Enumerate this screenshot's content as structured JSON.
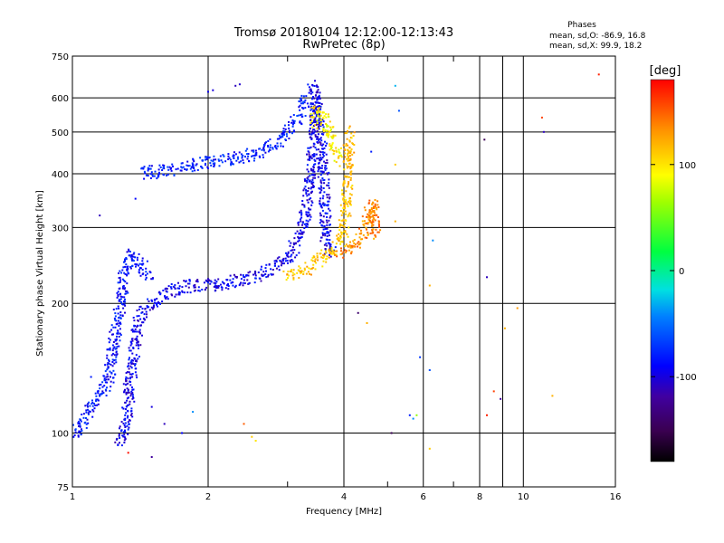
{
  "chart_data": {
    "type": "scatter",
    "title": "Tromsø 20180104 12:12:00-12:13:43",
    "subtitle": "RwPretec (8p)",
    "xlabel": "Frequency [MHz]",
    "ylabel": "Stationary phase Virtual Height [km]",
    "x_scale": "log",
    "y_scale": "log",
    "xlim": [
      1,
      16
    ],
    "ylim": [
      75,
      750
    ],
    "x_ticks": [
      1,
      2,
      4,
      6,
      8,
      10,
      16
    ],
    "x_tick_labels": [
      "1",
      "2",
      "4",
      "6",
      "8",
      "10",
      "16"
    ],
    "y_ticks": [
      75,
      100,
      200,
      300,
      400,
      500,
      600,
      750
    ],
    "y_tick_labels": [
      "75",
      "100",
      "200",
      "300",
      "400",
      "500",
      "600",
      "750"
    ],
    "grid": true,
    "stats": {
      "header": "Phases",
      "o_line": "mean, sd,O: -86.9, 16.8",
      "x_line": "mean, sd,X:  99.9, 18.2"
    },
    "colorbar": {
      "label": "[deg]",
      "range": [
        -180,
        180
      ],
      "ticks": [
        100,
        0,
        -100
      ],
      "tick_labels": [
        "100",
        "0",
        "-100"
      ]
    },
    "traces": [
      {
        "phase": -95,
        "points": [
          [
            1.26,
            95
          ],
          [
            1.3,
            100
          ],
          [
            1.32,
            110
          ],
          [
            1.34,
            125
          ],
          [
            1.36,
            145
          ],
          [
            1.38,
            165
          ],
          [
            1.4,
            180
          ],
          [
            1.44,
            192
          ],
          [
            1.5,
            200
          ],
          [
            1.56,
            205
          ],
          [
            1.62,
            210
          ],
          [
            1.68,
            215
          ],
          [
            1.76,
            218
          ],
          [
            1.85,
            220
          ],
          [
            1.95,
            220
          ],
          [
            2.05,
            221
          ],
          [
            2.2,
            223
          ],
          [
            2.35,
            226
          ],
          [
            2.5,
            230
          ],
          [
            2.65,
            235
          ],
          [
            2.8,
            242
          ],
          [
            2.95,
            252
          ],
          [
            3.05,
            262
          ],
          [
            3.15,
            278
          ],
          [
            3.25,
            300
          ],
          [
            3.3,
            330
          ],
          [
            3.35,
            380
          ],
          [
            3.4,
            450
          ],
          [
            3.45,
            550
          ],
          [
            3.48,
            620
          ]
        ]
      },
      {
        "phase": -85,
        "points": [
          [
            1.0,
            98
          ],
          [
            1.05,
            105
          ],
          [
            1.1,
            115
          ],
          [
            1.15,
            122
          ],
          [
            1.2,
            130
          ],
          [
            1.22,
            150
          ],
          [
            1.25,
            175
          ],
          [
            1.28,
            200
          ],
          [
            1.3,
            230
          ],
          [
            1.33,
            250
          ],
          [
            1.35,
            260
          ],
          [
            1.38,
            255
          ],
          [
            1.42,
            245
          ],
          [
            1.5,
            232
          ]
        ]
      },
      {
        "phase": -80,
        "points": [
          [
            1.42,
            400
          ],
          [
            1.55,
            405
          ],
          [
            1.7,
            410
          ],
          [
            1.85,
            418
          ],
          [
            2.0,
            425
          ],
          [
            2.2,
            432
          ],
          [
            2.45,
            440
          ],
          [
            2.7,
            455
          ],
          [
            2.9,
            480
          ],
          [
            3.05,
            510
          ],
          [
            3.2,
            550
          ],
          [
            3.3,
            600
          ]
        ]
      },
      {
        "phase": -95,
        "points": [
          [
            3.4,
            640
          ],
          [
            3.45,
            600
          ],
          [
            3.5,
            540
          ],
          [
            3.55,
            480
          ],
          [
            3.6,
            420
          ],
          [
            3.62,
            360
          ],
          [
            3.64,
            310
          ],
          [
            3.65,
            280
          ],
          [
            3.7,
            265
          ],
          [
            3.8,
            262
          ]
        ]
      },
      {
        "phase": 115,
        "points": [
          [
            3.0,
            230
          ],
          [
            3.1,
            232
          ],
          [
            3.2,
            235
          ],
          [
            3.3,
            240
          ],
          [
            3.45,
            248
          ],
          [
            3.6,
            255
          ],
          [
            3.75,
            262
          ],
          [
            3.9,
            275
          ],
          [
            4.0,
            300
          ],
          [
            4.05,
            340
          ],
          [
            4.08,
            390
          ],
          [
            4.1,
            450
          ],
          [
            4.12,
            500
          ]
        ]
      },
      {
        "phase": 135,
        "points": [
          [
            3.9,
            260
          ],
          [
            4.1,
            268
          ],
          [
            4.3,
            280
          ],
          [
            4.45,
            295
          ],
          [
            4.55,
            320
          ],
          [
            4.6,
            345
          ],
          [
            4.65,
            330
          ],
          [
            4.7,
            300
          ],
          [
            4.75,
            285
          ]
        ]
      },
      {
        "phase": 95,
        "points": [
          [
            3.45,
            520
          ],
          [
            3.5,
            560
          ],
          [
            3.6,
            540
          ],
          [
            3.7,
            500
          ],
          [
            3.8,
            470
          ],
          [
            3.9,
            430
          ]
        ]
      }
    ],
    "outliers": [
      [
        2.0,
        620,
        -95
      ],
      [
        2.05,
        625,
        -100
      ],
      [
        2.3,
        640,
        -110
      ],
      [
        2.35,
        645,
        -105
      ],
      [
        1.15,
        320,
        -110
      ],
      [
        1.38,
        350,
        -90
      ],
      [
        1.3,
        130,
        -100
      ],
      [
        1.35,
        110,
        -120
      ],
      [
        1.5,
        115,
        -100
      ],
      [
        1.6,
        105,
        -110
      ],
      [
        1.75,
        100,
        -90
      ],
      [
        1.85,
        112,
        -40
      ],
      [
        1.1,
        135,
        -80
      ],
      [
        2.4,
        105,
        150
      ],
      [
        2.5,
        98,
        110
      ],
      [
        2.55,
        96,
        100
      ],
      [
        1.33,
        90,
        175
      ],
      [
        1.5,
        88,
        -120
      ],
      [
        5.2,
        640,
        -30
      ],
      [
        5.3,
        560,
        -60
      ],
      [
        5.2,
        420,
        110
      ],
      [
        4.6,
        450,
        -80
      ],
      [
        5.2,
        310,
        120
      ],
      [
        6.3,
        280,
        -40
      ],
      [
        6.2,
        220,
        120
      ],
      [
        5.9,
        150,
        -70
      ],
      [
        6.2,
        140,
        -60
      ],
      [
        4.5,
        180,
        120
      ],
      [
        4.3,
        190,
        -140
      ],
      [
        5.6,
        110,
        -80
      ],
      [
        5.8,
        110,
        60
      ],
      [
        5.7,
        108,
        -40
      ],
      [
        6.2,
        92,
        110
      ],
      [
        8.2,
        480,
        -150
      ],
      [
        8.3,
        230,
        -110
      ],
      [
        8.3,
        110,
        170
      ],
      [
        8.6,
        125,
        160
      ],
      [
        8.9,
        120,
        -120
      ],
      [
        9.1,
        175,
        120
      ],
      [
        9.7,
        195,
        130
      ],
      [
        11.0,
        540,
        160
      ],
      [
        11.1,
        500,
        -110
      ],
      [
        11.6,
        122,
        120
      ],
      [
        14.7,
        680,
        170
      ],
      [
        5.1,
        100,
        -150
      ]
    ]
  }
}
